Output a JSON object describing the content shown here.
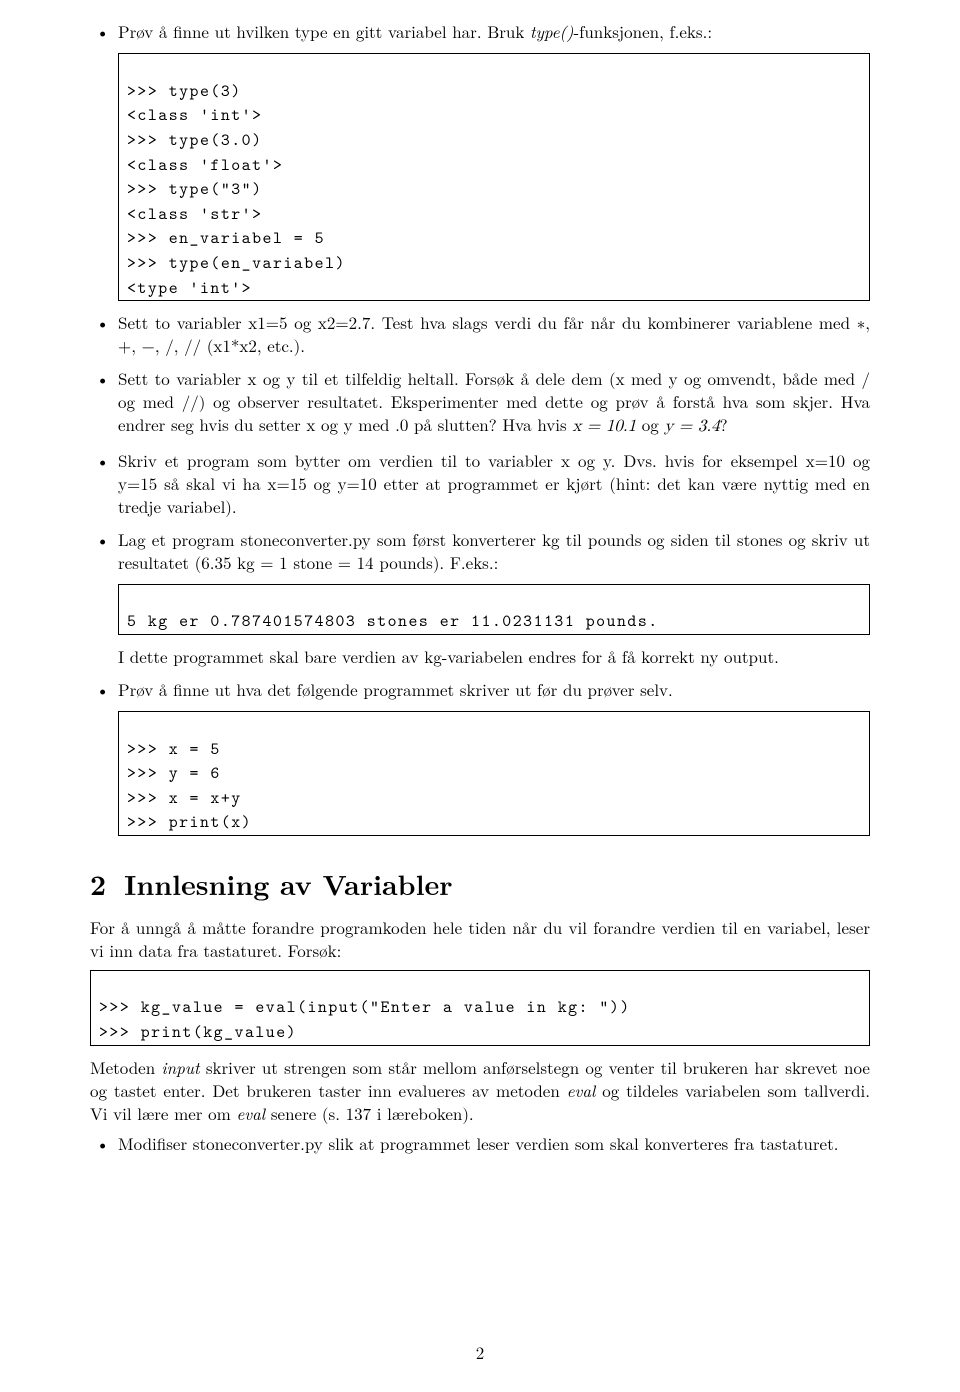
{
  "page": {
    "number": "2",
    "background": "#ffffff",
    "text_color": "#000000",
    "base_fontsize": 17
  },
  "bullets1": [
    {
      "text_pre": "Prøv å finne ut hvilken type en gitt variabel har. Bruk ",
      "text_italic": "type()",
      "text_post": "-funksjonen, f.eks.:"
    }
  ],
  "code1": {
    "lines": [
      ">>> type(3)",
      "<class 'int'>",
      ">>> type(3.0)",
      "<class 'float'>",
      ">>> type(\"3\")",
      "<class 'str'>",
      ">>> en_variabel = 5",
      ">>> type(en_variabel)",
      "<type 'int'>"
    ]
  },
  "bullets2": [
    {
      "text": "Sett to variabler x1=5 og x2=2.7. Test hva slags verdi du får når du kombinerer variablene med ∗, +, −, /, // (x1*x2, etc.)."
    },
    {
      "text_pre": "Sett to variabler x og y til et tilfeldig heltall. Forsøk å dele dem (x med y og omvendt, både med / og med //) og observer resultatet. Eksperimenter med dette og prøv å forstå hva som skjer. Hva endrer seg hvis du setter x og y med .0 på slutten? Hva hvis ",
      "math1": "x = 10.1",
      "mid": " og ",
      "math2": "y = 3.4",
      "post": "?"
    },
    {
      "text": "Skriv et program som bytter om verdien til to variabler x og y. Dvs. hvis for eksempel x=10 og y=15 så skal vi ha x=15 og y=10 etter at programmet er kjørt (hint: det kan være nyttig med en tredje variabel)."
    },
    {
      "text": "Lag et program stoneconverter.py som først konverterer kg til pounds og siden til stones og skriv ut resultatet (6.35 kg = 1 stone = 14 pounds). F.eks.:"
    }
  ],
  "code2": {
    "line": "5 kg er 0.787401574803 stones er 11.0231131 pounds."
  },
  "after_code2": "I dette programmet skal bare verdien av kg-variabelen endres for å få korrekt ny output.",
  "bullets3": [
    {
      "text": "Prøv å finne ut hva det følgende programmet skriver ut før du prøver selv."
    }
  ],
  "code3": {
    "lines": [
      ">>> x = 5",
      ">>> y = 6",
      ">>> x = x+y",
      ">>> print(x)"
    ]
  },
  "section": {
    "num": "2",
    "title": "Innlesning av Variabler"
  },
  "para1": "For å unngå å måtte forandre programkoden hele tiden når du vil forandre verdien til en variabel, leser vi inn data fra tastaturet. Forsøk:",
  "code4": {
    "lines": [
      ">>> kg_value = eval(input(\"Enter a value in kg: \"))",
      ">>> print(kg_value)"
    ]
  },
  "para2_pre": "Metoden ",
  "para2_i1": "input",
  "para2_mid1": " skriver ut strengen som står mellom anførselstegn og venter til brukeren har skrevet noe og tastet enter. Det brukeren taster inn evalueres av metoden ",
  "para2_i2": "eval",
  "para2_mid2": " og tildeles variabelen som tallverdi. Vi vil lære mer om ",
  "para2_i3": "eval",
  "para2_post": " senere (s. 137 i læreboken).",
  "bullets4": [
    {
      "text": "Modifiser stoneconverter.py slik at programmet leser verdien som skal konverteres fra tastaturet."
    }
  ]
}
